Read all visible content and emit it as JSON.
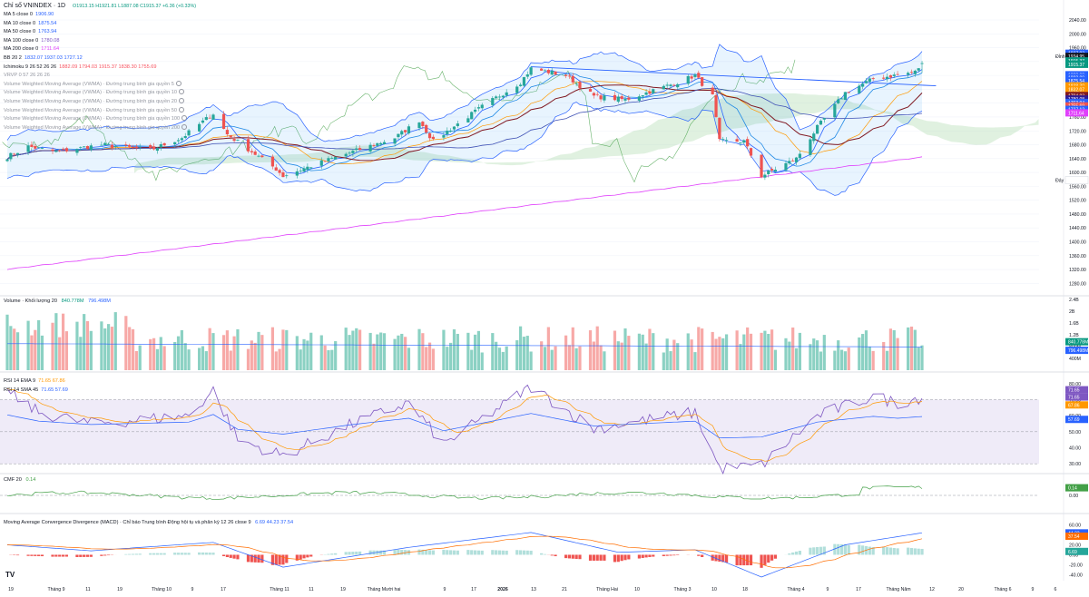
{
  "header": {
    "symbol_title": "Chỉ số VNINDEX · 1D",
    "ohlc_text": "O1913.15 H1921.81 L1887.08 C1915.37 +6.36 (+0.33%)"
  },
  "main_legend": [
    {
      "id": "ma5",
      "label": "MA 5 close 0",
      "value": "1906.90",
      "color": "#2962ff"
    },
    {
      "id": "ma10",
      "label": "MA 10 close 0",
      "value": "1875.54",
      "color": "#2962ff"
    },
    {
      "id": "ma50",
      "label": "MA 50 close 0",
      "value": "1763.94",
      "color": "#2962ff"
    },
    {
      "id": "ma100",
      "label": "MA 100 close 0",
      "value": "1780.08",
      "color": "#7e57c2"
    },
    {
      "id": "ma200",
      "label": "MA 200 close 0",
      "value": "1711.64",
      "color": "#e040fb"
    },
    {
      "id": "bb",
      "label": "BB 20 2",
      "value": "1832.07  1937.03  1727.12",
      "color": "#2962ff"
    },
    {
      "id": "ichimoku",
      "label": "Ichimoku 9 26 52 26 26",
      "value": "1882.09  1794.03  1915.37  1838.30  1755.69",
      "color": "#f7525f"
    },
    {
      "id": "vrvp",
      "label": "VRVP 0 57 26 26 26",
      "value": "",
      "color": "#9598a1"
    },
    {
      "id": "vwma1",
      "label": "Volume Weighted Moving Average (VWMA) · Đường trung bình gia quyền 5",
      "value": "",
      "color": "#9598a1"
    },
    {
      "id": "vwma2",
      "label": "Volume Weighted Moving Average (VWMA) · Đường trung bình gia quyền 10",
      "value": "",
      "color": "#9598a1"
    },
    {
      "id": "vwma3",
      "label": "Volume Weighted Moving Average (VWMA) · Đường trung bình gia quyền 20",
      "value": "",
      "color": "#9598a1"
    },
    {
      "id": "vwma4",
      "label": "Volume Weighted Moving Average (VWMA) · Đường trung bình gia quyền 50",
      "value": "",
      "color": "#9598a1"
    },
    {
      "id": "vwma5",
      "label": "Volume Weighted Moving Average (VWMA) · Đường trung bình gia quyền 100",
      "value": "",
      "color": "#9598a1"
    },
    {
      "id": "vwma6",
      "label": "Volume Weighted Moving Average (VWMA) · Đường trung bình gia quyền 200",
      "value": "",
      "color": "#9598a1"
    }
  ],
  "volume_legend": {
    "label": "Volume · Khối lượng 20",
    "value1": "840.778M",
    "value2": "796.498M"
  },
  "rsi_legend": [
    {
      "label": "RSI 14 EMA 9",
      "value": "71.65  67.86"
    },
    {
      "label": "RSI 14 SMA 45",
      "value": "71.65  57.69"
    }
  ],
  "cmf_legend": {
    "label": "CMF 20",
    "value": "0.14"
  },
  "macd_legend": {
    "label": "Moving Average Convergence Divergence (MACD) · Chỉ báo Trung bình Động hội tụ và phân kỳ 12 26 close 9",
    "value": "6.69  44.23  37.54"
  },
  "x_axis": {
    "labels": [
      "19",
      "Tháng 9",
      "11",
      "19",
      "Tháng 10",
      "9",
      "17",
      "Tháng 11",
      "11",
      "19",
      "Tháng Mười hai",
      "9",
      "17",
      "2026",
      "13",
      "21",
      "Tháng Hai",
      "10",
      "Tháng 3",
      "10",
      "18",
      "Tháng 4",
      "9",
      "17",
      "Tháng Năm",
      "12",
      "20",
      "Tháng 6",
      "9",
      "6"
    ],
    "bold": [
      "2026"
    ]
  },
  "price_axis": {
    "ticks": [
      "2040.00",
      "2000.00",
      "1960.00",
      "1920.00",
      "1880.00",
      "1840.00",
      "1800.00",
      "1760.00",
      "1720.00",
      "1680.00",
      "1640.00",
      "1600.00",
      "1560.00",
      "1520.00",
      "1480.00",
      "1440.00",
      "1400.00",
      "1360.00",
      "1320.00",
      "1280.00"
    ],
    "side_labels": [
      {
        "text": "Đỉnh",
        "price": 1935
      },
      {
        "text": "Đáy",
        "price": 1578
      }
    ],
    "badges": [
      {
        "text": "1937.03",
        "color": "#2962ff",
        "price": 1944
      },
      {
        "text": "1934.95",
        "color": "#131722",
        "price": 1935
      },
      {
        "text": "1915.37",
        "color": "#089981",
        "price": 1922
      },
      {
        "text": "1915.37",
        "color": "#089981",
        "price": 1912
      },
      {
        "text": "1888.98",
        "color": "#2962ff",
        "price": 1882
      },
      {
        "text": "1882.09",
        "color": "#2962ff",
        "price": 1874
      },
      {
        "text": "1875.54",
        "color": "#2962ff",
        "price": 1865
      },
      {
        "text": "1838.30",
        "color": "#ff9800",
        "price": 1850
      },
      {
        "text": "1832.07",
        "color": "#ff9800",
        "price": 1840
      },
      {
        "text": "1794.03",
        "color": "#801922",
        "price": 1822
      },
      {
        "text": "1780.08",
        "color": "#311b92",
        "price": 1812
      },
      {
        "text": "1763.94",
        "color": "#2962ff",
        "price": 1802
      },
      {
        "text": "1755.69",
        "color": "#ef5350",
        "price": 1792
      },
      {
        "text": "1727.12",
        "color": "#2962ff",
        "price": 1782
      },
      {
        "text": "1711.64",
        "color": "#e040fb",
        "price": 1772
      },
      {
        "text": "1578.42",
        "color": "#ffffff",
        "price": 1578
      }
    ]
  },
  "volume_axis": {
    "ticks": [
      "2.4B",
      "2B",
      "1.6B",
      "1.2B",
      "800M",
      "400M"
    ],
    "badges": [
      {
        "text": "840.778M",
        "color": "#089981"
      },
      {
        "text": "796.498M",
        "color": "#2962ff"
      }
    ]
  },
  "rsi_axis": {
    "ticks": [
      "80.00",
      "70.00",
      "60.00",
      "50.00",
      "40.00",
      "30.00"
    ],
    "badges": [
      {
        "text": "71.65",
        "color": "#7e57c2"
      },
      {
        "text": "71.65",
        "color": "#7e57c2"
      },
      {
        "text": "67.86",
        "color": "#ff9800"
      },
      {
        "text": "57.69",
        "color": "#2962ff"
      }
    ]
  },
  "cmf_axis": {
    "ticks": [
      "0.00"
    ],
    "badges": [
      {
        "text": "0.14",
        "color": "#43a047"
      }
    ]
  },
  "macd_axis": {
    "ticks": [
      "60.00",
      "40.00",
      "20.00",
      "0.00",
      "-20.00",
      "-40.00"
    ],
    "badges": [
      {
        "text": "44.23",
        "color": "#2962ff"
      },
      {
        "text": "37.54",
        "color": "#ff6d00"
      },
      {
        "text": "6.69",
        "color": "#26a69a"
      }
    ]
  },
  "colors": {
    "up": "#26a69a",
    "down": "#ef5350",
    "ma5": "#2962ff",
    "ma200": "#e040fb",
    "bb": "#2962ff",
    "kijun": "#801922",
    "tenkan": "#ef5350",
    "cloud_up": "#a5d6a7",
    "cloud_down": "#ffcdd2",
    "rsi": "#7e57c2",
    "rsi_ema": "#ff9800",
    "cmf": "#43a047",
    "macd": "#2962ff",
    "signal": "#ff6d00",
    "grid": "#f0f3fa"
  },
  "chart_data": [
    {
      "type": "candlestick",
      "title": "Chỉ số VNINDEX · 1D",
      "x_range": [
        "2025-08-19",
        "2026-06-10"
      ],
      "ylim": [
        1260,
        2040
      ],
      "last": {
        "open": 1913.15,
        "high": 1921.81,
        "low": 1887.08,
        "close": 1915.37,
        "change": 6.36,
        "change_pct": 0.33
      },
      "anchor_closes": [
        {
          "date": "2025-08-19",
          "close": 1645
        },
        {
          "date": "2025-08-25",
          "close": 1675
        },
        {
          "date": "2025-09-02",
          "close": 1660
        },
        {
          "date": "2025-09-15",
          "close": 1680
        },
        {
          "date": "2025-09-29",
          "close": 1665
        },
        {
          "date": "2025-10-08",
          "close": 1700
        },
        {
          "date": "2025-10-17",
          "close": 1770
        },
        {
          "date": "2025-10-21",
          "close": 1710
        },
        {
          "date": "2025-11-04",
          "close": 1610
        },
        {
          "date": "2025-11-06",
          "close": 1590
        },
        {
          "date": "2025-11-20",
          "close": 1640
        },
        {
          "date": "2025-12-08",
          "close": 1700
        },
        {
          "date": "2025-12-15",
          "close": 1750
        },
        {
          "date": "2025-12-19",
          "close": 1690
        },
        {
          "date": "2026-01-02",
          "close": 1790
        },
        {
          "date": "2026-01-13",
          "close": 1860
        },
        {
          "date": "2026-01-16",
          "close": 1900
        },
        {
          "date": "2026-01-26",
          "close": 1880
        },
        {
          "date": "2026-02-03",
          "close": 1820
        },
        {
          "date": "2026-02-12",
          "close": 1810
        },
        {
          "date": "2026-02-27",
          "close": 1860
        },
        {
          "date": "2026-03-04",
          "close": 1880
        },
        {
          "date": "2026-03-09",
          "close": 1820
        },
        {
          "date": "2026-03-11",
          "close": 1690
        },
        {
          "date": "2026-03-18",
          "close": 1690
        },
        {
          "date": "2026-03-23",
          "close": 1590
        },
        {
          "date": "2026-04-02",
          "close": 1640
        },
        {
          "date": "2026-04-08",
          "close": 1730
        },
        {
          "date": "2026-04-16",
          "close": 1830
        },
        {
          "date": "2026-04-24",
          "close": 1870
        },
        {
          "date": "2026-05-06",
          "close": 1890
        },
        {
          "date": "2026-05-08",
          "close": 1915.37
        }
      ],
      "series": [
        {
          "name": "MA 5 close 0",
          "last": 1906.9
        },
        {
          "name": "MA 10 close 0",
          "last": 1875.54
        },
        {
          "name": "MA 50 close 0",
          "last": 1763.94
        },
        {
          "name": "MA 100 close 0",
          "last": 1780.08
        },
        {
          "name": "MA 200 close 0",
          "last": 1711.64
        },
        {
          "name": "BB 20 2",
          "last": [
            1832.07,
            1937.03,
            1727.12
          ]
        },
        {
          "name": "Ichimoku 9 26 52 26 26",
          "last": [
            1882.09,
            1794.03,
            1915.37,
            1838.3,
            1755.69
          ]
        }
      ],
      "trendline": {
        "from": {
          "date": "2026-01-16",
          "price": 1905
        },
        "to": {
          "date": "2026-05-12",
          "price": 1850
        }
      },
      "peak": 1934.95,
      "trough": 1578.42
    },
    {
      "type": "bar",
      "title": "Volume · Khối lượng 20",
      "ylim": [
        0,
        2400000000
      ],
      "last": {
        "volume": 840778000,
        "ma20": 796498000
      }
    },
    {
      "type": "line",
      "title": "RSI 14",
      "ylim": [
        25,
        85
      ],
      "band": [
        30,
        70
      ],
      "anchors": [
        {
          "date": "2025-08-19",
          "rsi": 75
        },
        {
          "date": "2025-08-28",
          "rsi": 62
        },
        {
          "date": "2025-09-12",
          "rsi": 55
        },
        {
          "date": "2025-10-10",
          "rsi": 60
        },
        {
          "date": "2025-10-17",
          "rsi": 76
        },
        {
          "date": "2025-10-24",
          "rsi": 45
        },
        {
          "date": "2025-11-06",
          "rsi": 35
        },
        {
          "date": "2025-11-26",
          "rsi": 55
        },
        {
          "date": "2025-12-12",
          "rsi": 68
        },
        {
          "date": "2025-12-22",
          "rsi": 42
        },
        {
          "date": "2026-01-16",
          "rsi": 78
        },
        {
          "date": "2026-02-03",
          "rsi": 52
        },
        {
          "date": "2026-02-26",
          "rsi": 60
        },
        {
          "date": "2026-03-04",
          "rsi": 62
        },
        {
          "date": "2026-03-11",
          "rsi": 27
        },
        {
          "date": "2026-03-23",
          "rsi": 29
        },
        {
          "date": "2026-04-08",
          "rsi": 60
        },
        {
          "date": "2026-04-24",
          "rsi": 72
        },
        {
          "date": "2026-05-01",
          "rsi": 68
        },
        {
          "date": "2026-05-08",
          "rsi": 71.65
        }
      ],
      "last": {
        "rsi": 71.65,
        "ema": 67.86,
        "sma": 57.69
      }
    },
    {
      "type": "line",
      "title": "CMF 20",
      "ylim": [
        -0.3,
        0.3
      ],
      "last": {
        "cmf": 0.14
      }
    },
    {
      "type": "line",
      "title": "MACD 12 26 close 9",
      "ylim": [
        -45,
        65
      ],
      "anchors": [
        {
          "date": "2025-08-19",
          "macd": 20
        },
        {
          "date": "2025-09-12",
          "macd": 8
        },
        {
          "date": "2025-10-17",
          "macd": 25
        },
        {
          "date": "2025-11-06",
          "macd": -25
        },
        {
          "date": "2025-12-12",
          "macd": 15
        },
        {
          "date": "2026-01-16",
          "macd": 45
        },
        {
          "date": "2026-02-10",
          "macd": 5
        },
        {
          "date": "2026-03-04",
          "macd": 10
        },
        {
          "date": "2026-03-23",
          "macd": -45
        },
        {
          "date": "2026-04-16",
          "macd": 20
        },
        {
          "date": "2026-05-08",
          "macd": 44.23
        }
      ],
      "last": {
        "histogram": 6.69,
        "macd": 44.23,
        "signal": 37.54
      }
    }
  ]
}
